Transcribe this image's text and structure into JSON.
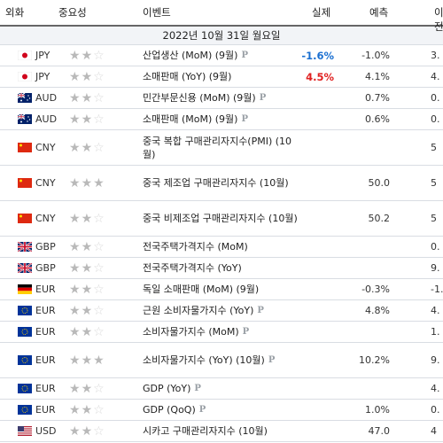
{
  "header": {
    "currency": "외화",
    "importance": "중요성",
    "event": "이벤트",
    "actual": "실제",
    "forecast": "예측",
    "previous": "이전"
  },
  "date_label": "2022년 10월 31일 월요일",
  "rows": [
    {
      "flag": "jp",
      "currency": "JPY",
      "stars": 2,
      "event": "산업생산 (MoM) (9월)",
      "p": "P",
      "actual": "-1.6%",
      "actual_color": "#1a6fd1",
      "forecast": "-1.0%",
      "previous": "3.",
      "tall": false
    },
    {
      "flag": "jp",
      "currency": "JPY",
      "stars": 2,
      "event": "소매판매 (YoY) (9월)",
      "p": "",
      "actual": "4.5%",
      "actual_color": "#e02020",
      "forecast": "4.1%",
      "previous": "4.",
      "tall": false
    },
    {
      "flag": "au",
      "currency": "AUD",
      "stars": 2,
      "event": "민간부문신용 (MoM) (9월)",
      "p": "P",
      "actual": "",
      "actual_color": "",
      "forecast": "0.7%",
      "previous": "0.",
      "tall": false
    },
    {
      "flag": "au",
      "currency": "AUD",
      "stars": 2,
      "event": "소매판매 (MoM) (9월)",
      "p": "P",
      "actual": "",
      "actual_color": "",
      "forecast": "0.6%",
      "previous": "0.",
      "tall": false
    },
    {
      "flag": "cn",
      "currency": "CNY",
      "stars": 2,
      "event": "중국 복합 구매관리자지수(PMI) (10월)",
      "p": "",
      "actual": "",
      "actual_color": "",
      "forecast": "",
      "previous": "5",
      "tall": true
    },
    {
      "flag": "cn",
      "currency": "CNY",
      "stars": 3,
      "event": "중국 제조업 구매관리자지수 (10월)",
      "p": "",
      "actual": "",
      "actual_color": "",
      "forecast": "50.0",
      "previous": "5",
      "tall": true
    },
    {
      "flag": "cn",
      "currency": "CNY",
      "stars": 2,
      "event": "중국 비제조업 구매관리자지수 (10월)",
      "p": "",
      "actual": "",
      "actual_color": "",
      "forecast": "50.2",
      "previous": "5",
      "tall": true
    },
    {
      "flag": "gb",
      "currency": "GBP",
      "stars": 2,
      "event": "전국주택가격지수 (MoM)",
      "p": "",
      "actual": "",
      "actual_color": "",
      "forecast": "",
      "previous": "0.",
      "tall": false
    },
    {
      "flag": "gb",
      "currency": "GBP",
      "stars": 2,
      "event": "전국주택가격지수 (YoY)",
      "p": "",
      "actual": "",
      "actual_color": "",
      "forecast": "",
      "previous": "9.",
      "tall": false
    },
    {
      "flag": "de",
      "currency": "EUR",
      "stars": 2,
      "event": "독일 소매판매 (MoM) (9월)",
      "p": "",
      "actual": "",
      "actual_color": "",
      "forecast": "-0.3%",
      "previous": "-1.",
      "tall": false
    },
    {
      "flag": "eu",
      "currency": "EUR",
      "stars": 2,
      "event": "근원 소비자물가지수 (YoY)",
      "p": "P",
      "actual": "",
      "actual_color": "",
      "forecast": "4.8%",
      "previous": "4.",
      "tall": false
    },
    {
      "flag": "eu",
      "currency": "EUR",
      "stars": 2,
      "event": "소비자물가지수 (MoM)",
      "p": "P",
      "actual": "",
      "actual_color": "",
      "forecast": "",
      "previous": "1.",
      "tall": false
    },
    {
      "flag": "eu",
      "currency": "EUR",
      "stars": 3,
      "event": "소비자물가지수 (YoY) (10월)",
      "p": "P",
      "actual": "",
      "actual_color": "",
      "forecast": "10.2%",
      "previous": "9.",
      "tall": true
    },
    {
      "flag": "eu",
      "currency": "EUR",
      "stars": 2,
      "event": "GDP (YoY)",
      "p": "P",
      "actual": "",
      "actual_color": "",
      "forecast": "",
      "previous": "4.",
      "tall": false
    },
    {
      "flag": "eu",
      "currency": "EUR",
      "stars": 2,
      "event": "GDP (QoQ)",
      "p": "P",
      "actual": "",
      "actual_color": "",
      "forecast": "1.0%",
      "previous": "0.",
      "tall": false
    },
    {
      "flag": "us",
      "currency": "USD",
      "stars": 2,
      "event": "시카고 구매관리자지수 (10월)",
      "p": "",
      "actual": "",
      "actual_color": "",
      "forecast": "47.0",
      "previous": "4",
      "tall": false
    }
  ]
}
